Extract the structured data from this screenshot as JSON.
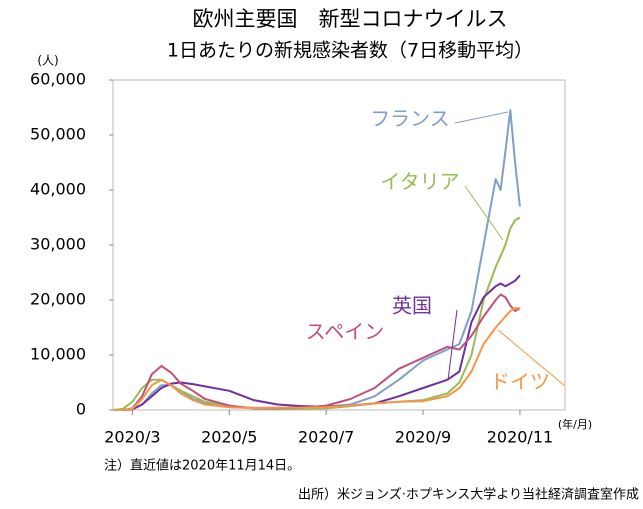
{
  "chart_data": {
    "type": "line",
    "title": "欧州主要国　新型コロナウイルス",
    "subtitle": "1日あたりの新規感染者数（7日移動平均）",
    "y_unit": "(人)",
    "x_unit": "(年/月)",
    "notes": [
      "注）直近値は2020年11月14日。",
      "出所）米ジョンズ·ホプキンス大学より当社経済調査室作成"
    ],
    "x": [
      2.6,
      2.8,
      3.0,
      3.2,
      3.4,
      3.6,
      3.8,
      4.0,
      4.25,
      4.5,
      5.0,
      5.5,
      6.0,
      6.5,
      7.0,
      7.5,
      8.0,
      8.5,
      9.0,
      9.5,
      9.75,
      10.0,
      10.25,
      10.5,
      10.6,
      10.7,
      10.8,
      10.9,
      11.0
    ],
    "xlim": [
      2.6,
      11.93
    ],
    "xticks": [
      {
        "value": 3,
        "label": "2020/3"
      },
      {
        "value": 5,
        "label": "2020/5"
      },
      {
        "value": 7,
        "label": "2020/7"
      },
      {
        "value": 9,
        "label": "2020/9"
      },
      {
        "value": 11,
        "label": "2020/11"
      }
    ],
    "ylim": [
      0,
      60000
    ],
    "yticks": [
      0,
      {
        "value": 10000,
        "label": "10,000"
      },
      {
        "value": 20000,
        "label": "20,000"
      },
      {
        "value": 30000,
        "label": "30,000"
      },
      {
        "value": 40000,
        "label": "40,000"
      },
      {
        "value": 50000,
        "label": "50,000"
      },
      {
        "value": 60000,
        "label": "60,000"
      }
    ],
    "grid": false,
    "series": [
      {
        "name": "フランス",
        "color": "#7f9fc9",
        "values": [
          0,
          0,
          100,
          1000,
          3000,
          4500,
          4500,
          3500,
          2000,
          1200,
          500,
          400,
          400,
          500,
          600,
          1000,
          2500,
          5500,
          9000,
          11000,
          12000,
          18000,
          30000,
          42000,
          40000,
          47000,
          54500,
          45000,
          37000
        ]
      },
      {
        "name": "イタリア",
        "color": "#9bbb59",
        "values": [
          0,
          200,
          1500,
          4000,
          5500,
          5500,
          4500,
          3500,
          2500,
          1500,
          700,
          300,
          200,
          200,
          300,
          700,
          1200,
          1500,
          1800,
          3000,
          5000,
          10000,
          20000,
          26000,
          28000,
          30000,
          33000,
          34500,
          35000
        ]
      },
      {
        "name": "英国",
        "color": "#7030a0",
        "values": [
          0,
          0,
          100,
          1000,
          2500,
          4000,
          4800,
          5000,
          4700,
          4300,
          3500,
          1800,
          1000,
          700,
          600,
          800,
          1200,
          2500,
          4000,
          5500,
          7000,
          16000,
          20500,
          22500,
          23000,
          22500,
          23000,
          23500,
          24500
        ]
      },
      {
        "name": "スペイン",
        "color": "#c0507a",
        "values": [
          0,
          0,
          300,
          2500,
          6500,
          8000,
          6800,
          4800,
          3500,
          2000,
          800,
          300,
          300,
          400,
          800,
          2000,
          4000,
          7500,
          9500,
          11500,
          11000,
          13500,
          17000,
          20000,
          21000,
          20500,
          19000,
          18000,
          18500
        ]
      },
      {
        "name": "ドイツ",
        "color": "#f79646",
        "values": [
          0,
          0,
          200,
          2000,
          4500,
          5500,
          4500,
          3000,
          1800,
          1000,
          500,
          350,
          400,
          400,
          500,
          800,
          1200,
          1500,
          1600,
          2500,
          4000,
          7000,
          12000,
          15000,
          16000,
          17000,
          18000,
          18500,
          18500
        ]
      }
    ]
  }
}
